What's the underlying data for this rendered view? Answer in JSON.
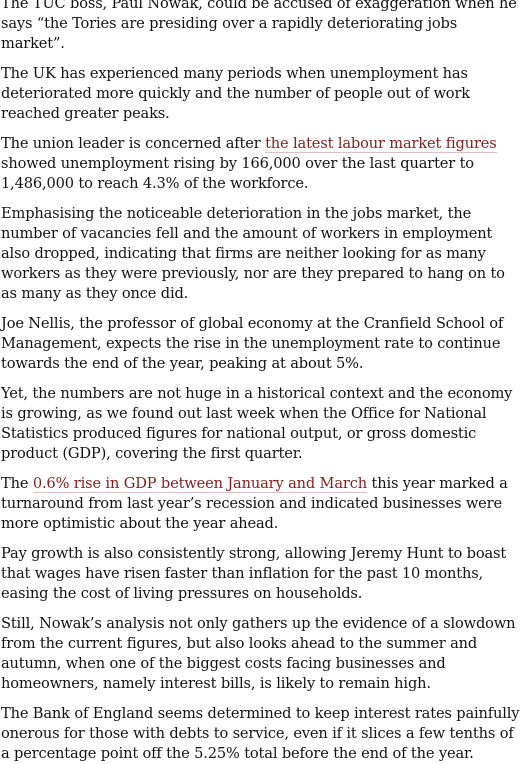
{
  "article": {
    "p1": "The TUC boss, Paul Nowak, could be accused of exaggeration when he says “the Tories are presiding over a rapidly deteriorating jobs market”.",
    "p2": "The UK has experienced many periods when unemployment has deteriorated more quickly and the number of people out of work reached greater peaks.",
    "p3": {
      "before": "The union leader is concerned after ",
      "link": "the latest labour market figures",
      "after": " showed unemployment rising by 166,000 over the last quarter to 1,486,000 to reach 4.3% of the workforce."
    },
    "p4": "Emphasising the noticeable deterioration in the jobs market, the number of vacancies fell and the amount of workers in employment also dropped, indicating that firms are neither looking for as many workers as they were previously, nor are they prepared to hang on to as many as they once did.",
    "p5": "Joe Nellis, the professor of global economy at the Cranfield School of Management, expects the rise in the unemployment rate to continue towards the end of the year, peaking at about 5%.",
    "p6": "Yet, the numbers are not huge in a historical context and the economy is growing, as we found out last week when the Office for National Statistics produced figures for national output, or gross domestic product (GDP), covering the first quarter.",
    "p7": {
      "before": "The ",
      "link": "0.6% rise in GDP between January and March",
      "after": " this year marked a turnaround from last year’s recession and indicated businesses were more optimistic about the year ahead."
    },
    "p8": "Pay growth is also consistently strong, allowing Jeremy Hunt to boast that wages have risen faster than inflation for the past 10 months, easing the cost of living pressures on households.",
    "p9": "Still, Nowak’s analysis not only gathers up the evidence of a slowdown from the current figures, but also looks ahead to the summer and autumn, when one of the biggest costs facing businesses and homeowners, namely interest bills, is likely to remain high.",
    "p10": "The Bank of England seems determined to keep interest rates painfully onerous for those with debts to service, even if it slices a few tenths of a percentage point off the 5.25% total before the end of the year."
  },
  "colors": {
    "text": "#121212",
    "link": "#8b1a1a",
    "background": "#ffffff"
  }
}
